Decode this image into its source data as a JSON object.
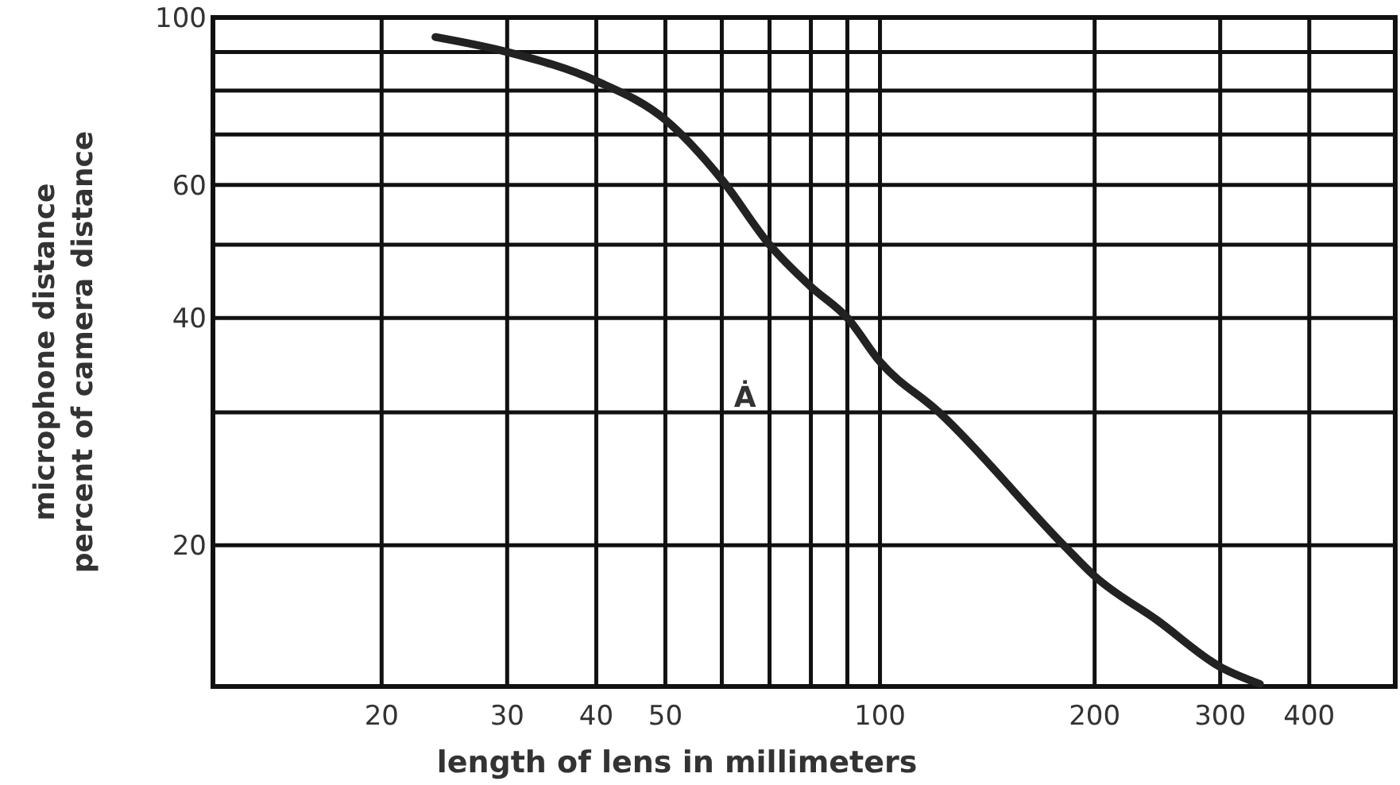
{
  "chart_data": {
    "type": "line",
    "xlabel": "length of lens in millimeters",
    "ylabel": "microphone distance\npercent of camera distance",
    "log": "xy",
    "grid": true,
    "marker": "none",
    "line_style": "solid",
    "x": [
      23.8,
      30,
      40,
      50,
      60,
      70,
      80,
      90,
      100,
      121,
      181,
      200,
      245,
      300,
      341
    ],
    "series": [
      {
        "color": "#222222",
        "values": [
          94.2,
          90,
          82.4,
          73.2,
          61,
          50,
          44,
          40,
          35,
          30,
          20,
          18.2,
          15.9,
          13.8,
          13.1
        ]
      }
    ],
    "xlim": [
      11.6,
      528
    ],
    "ylim": [
      13,
      100
    ],
    "xticks": [
      20,
      30,
      40,
      50,
      {
        "value": 60,
        "label": null
      },
      {
        "value": 70,
        "label": null
      },
      {
        "value": 80,
        "label": null
      },
      {
        "value": 90,
        "label": null
      },
      100,
      200,
      300,
      400
    ],
    "yticks": [
      20,
      {
        "value": 30,
        "label": null
      },
      40,
      {
        "value": 50,
        "label": null
      },
      60,
      {
        "value": 70,
        "label": null
      },
      {
        "value": 80,
        "label": null
      },
      {
        "value": 90,
        "label": null
      },
      100
    ],
    "annotations": [
      "Ȧ"
    ]
  }
}
